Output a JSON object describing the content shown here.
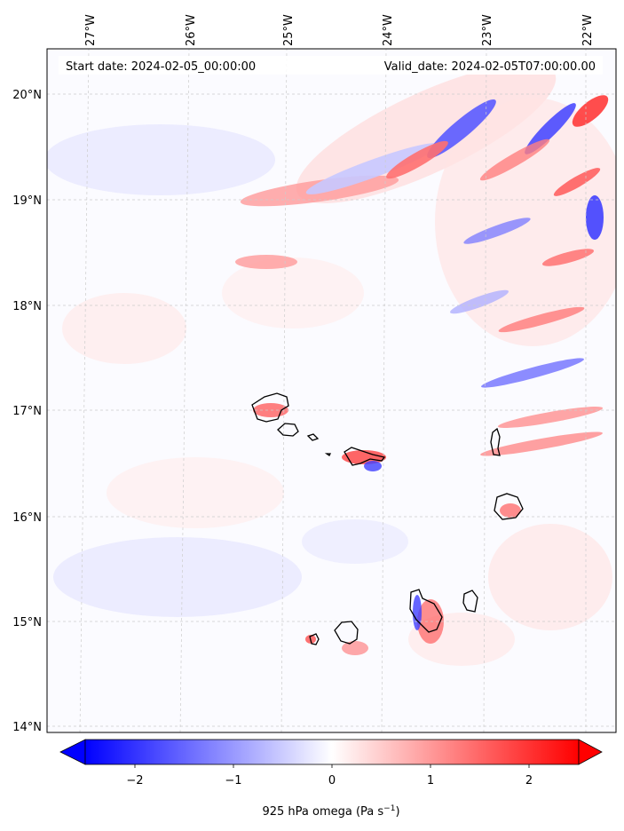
{
  "header": {
    "start_date": "Start date: 2024-02-05_00:00:00",
    "valid_date": "Valid_date: 2024-02-05T07:00:00.00"
  },
  "map": {
    "longitude_labels": [
      "27°W",
      "26°W",
      "25°W",
      "24°W",
      "23°W",
      "22°W"
    ],
    "latitude_labels": [
      "20°N",
      "19°N",
      "18°N",
      "17°N",
      "16°N",
      "15°N",
      "14°N"
    ],
    "field": "925 hPa omega",
    "islands": [
      "Santo Antão",
      "São Vicente",
      "Santa Luzia",
      "São Nicolau",
      "Sal",
      "Boa Vista",
      "Maio",
      "Santiago",
      "Fogo",
      "Brava"
    ]
  },
  "colorbar": {
    "label_main": "925 hPa omega (Pa s",
    "label_exp": "−1",
    "label_close": ")",
    "ticks": [
      "−2",
      "−1",
      "0",
      "1",
      "2"
    ],
    "range": [
      -2.6,
      2.6
    ],
    "colors": {
      "negative": "#0000ff",
      "zero": "#ffffff",
      "positive": "#ff0000"
    }
  }
}
